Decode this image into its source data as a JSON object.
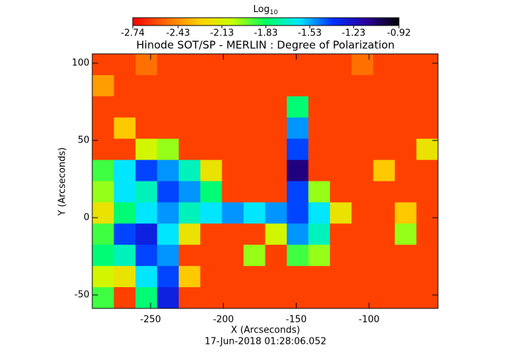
{
  "chart_data": {
    "type": "heatmap",
    "title": "Hinode SOT/SP - MERLIN : Degree of Polarization",
    "colorbar_label": {
      "base": "Log",
      "subscript": "10"
    },
    "colorbar_lim": [
      -2.74,
      -0.92
    ],
    "colorbar_ticks": [
      -2.74,
      -2.43,
      -2.13,
      -1.83,
      -1.53,
      -1.23,
      -0.92
    ],
    "colormap": [
      "#ff0000",
      "#ff6a00",
      "#ffd000",
      "#c8ff00",
      "#00ff60",
      "#00e8ff",
      "#0030ff",
      "#2a00a0",
      "#000000"
    ],
    "x_label": "X (Arcseconds)",
    "y_label": "Y (Arcseconds)",
    "footer": "17-Jun-2018 01:28:06.052",
    "xlim": [
      -290,
      -52.7
    ],
    "ylim": [
      -58.7,
      106
    ],
    "xticks": [
      -250,
      -200,
      -150,
      -100
    ],
    "yticks": [
      -50,
      0,
      50,
      100
    ],
    "values": [
      [
        -2.6,
        -2.6,
        -2.5,
        -2.6,
        -2.6,
        -2.6,
        -2.6,
        -2.6,
        -2.6,
        -2.6,
        -2.6,
        -2.6,
        -2.5,
        -2.6,
        -2.6,
        -2.6
      ],
      [
        -2.4,
        -2.6,
        -2.6,
        -2.6,
        -2.6,
        -2.6,
        -2.6,
        -2.6,
        -2.6,
        -2.6,
        -2.6,
        -2.6,
        -2.6,
        -2.6,
        -2.6,
        -2.6
      ],
      [
        -2.6,
        -2.6,
        -2.6,
        -2.6,
        -2.6,
        -2.6,
        -2.6,
        -2.6,
        -2.6,
        -1.8,
        -2.6,
        -2.6,
        -2.6,
        -2.6,
        -2.6,
        -2.6
      ],
      [
        -2.6,
        -2.3,
        -2.6,
        -2.6,
        -2.6,
        -2.6,
        -2.6,
        -2.6,
        -2.6,
        -1.5,
        -2.6,
        -2.6,
        -2.6,
        -2.6,
        -2.6,
        -2.6
      ],
      [
        -2.6,
        -2.6,
        -2.1,
        -2.0,
        -2.6,
        -2.6,
        -2.6,
        -2.6,
        -2.6,
        -1.4,
        -2.6,
        -2.6,
        -2.6,
        -2.6,
        -2.6,
        -2.2
      ],
      [
        -1.9,
        -1.6,
        -1.4,
        -1.5,
        -1.7,
        -2.2,
        -2.6,
        -2.6,
        -2.6,
        -1.1,
        -2.6,
        -2.6,
        -2.6,
        -2.3,
        -2.6,
        -2.6
      ],
      [
        -2.0,
        -1.6,
        -1.7,
        -1.4,
        -1.5,
        -1.8,
        -2.6,
        -2.6,
        -2.6,
        -1.4,
        -2.0,
        -2.6,
        -2.6,
        -2.6,
        -2.6,
        -2.6
      ],
      [
        -2.2,
        -1.8,
        -1.6,
        -1.5,
        -1.7,
        -1.6,
        -1.5,
        -1.6,
        -1.5,
        -1.4,
        -1.6,
        -2.2,
        -2.6,
        -2.6,
        -2.3,
        -2.6
      ],
      [
        -1.9,
        -1.4,
        -1.3,
        -1.6,
        -2.2,
        -2.6,
        -2.6,
        -2.6,
        -2.1,
        -1.5,
        -1.7,
        -2.6,
        -2.6,
        -2.6,
        -2.0,
        -2.6
      ],
      [
        -1.8,
        -1.7,
        -1.4,
        -1.5,
        -2.6,
        -2.6,
        -2.6,
        -2.0,
        -2.6,
        -1.9,
        -2.0,
        -2.6,
        -2.6,
        -2.6,
        -2.6,
        -2.6
      ],
      [
        -2.1,
        -2.2,
        -1.6,
        -1.4,
        -2.3,
        -2.6,
        -2.6,
        -2.6,
        -2.6,
        -2.6,
        -2.6,
        -2.6,
        -2.6,
        -2.6,
        -2.6,
        -2.6
      ],
      [
        -1.9,
        -2.6,
        -1.8,
        -1.3,
        -2.6,
        -2.6,
        -2.6,
        -2.6,
        -2.6,
        -2.6,
        -2.6,
        -2.6,
        -2.6,
        -2.6,
        -2.6,
        -2.6
      ]
    ]
  }
}
